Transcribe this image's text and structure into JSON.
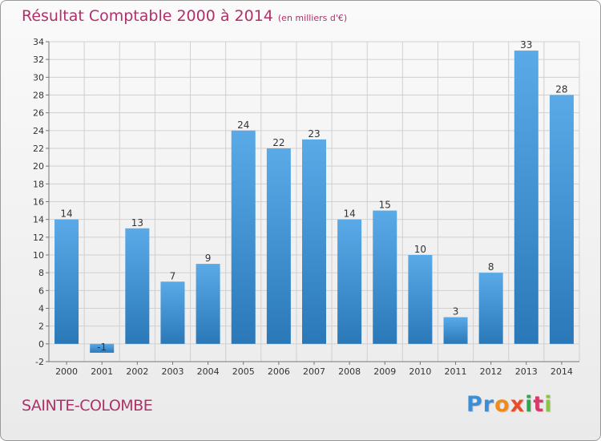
{
  "title": "Résultat Comptable 2000 à 2014",
  "subtitle": "(en milliers d'€)",
  "commune": "SAINTE-COLOMBE",
  "logo": {
    "letters": [
      "P",
      "r",
      "o",
      "x",
      "i",
      "t",
      "i"
    ],
    "colors": [
      "#3a8fd8",
      "#3a8fd8",
      "#f08a1c",
      "#e84d2a",
      "#2ca84a",
      "#d63a6a",
      "#8cc63f"
    ]
  },
  "colors": {
    "title": "#b0306a",
    "bar_top": "#5aaae8",
    "bar_bottom": "#2a78b8",
    "grid": "#d0d0d0",
    "axis": "#777777",
    "text": "#333333"
  },
  "chart_data": {
    "type": "bar",
    "title": "Résultat Comptable 2000 à 2014",
    "subtitle": "(en milliers d'€)",
    "xlabel": "",
    "ylabel": "",
    "categories": [
      "2000",
      "2001",
      "2002",
      "2003",
      "2004",
      "2005",
      "2006",
      "2007",
      "2008",
      "2009",
      "2010",
      "2011",
      "2012",
      "2013",
      "2014"
    ],
    "values": [
      14,
      -1,
      13,
      7,
      9,
      24,
      22,
      23,
      14,
      15,
      10,
      3,
      8,
      33,
      28
    ],
    "ylim": [
      -2,
      34
    ],
    "yticks": [
      -2,
      0,
      2,
      4,
      6,
      8,
      10,
      12,
      14,
      16,
      18,
      20,
      22,
      24,
      26,
      28,
      30,
      32,
      34
    ],
    "grid": true,
    "legend": "none"
  }
}
